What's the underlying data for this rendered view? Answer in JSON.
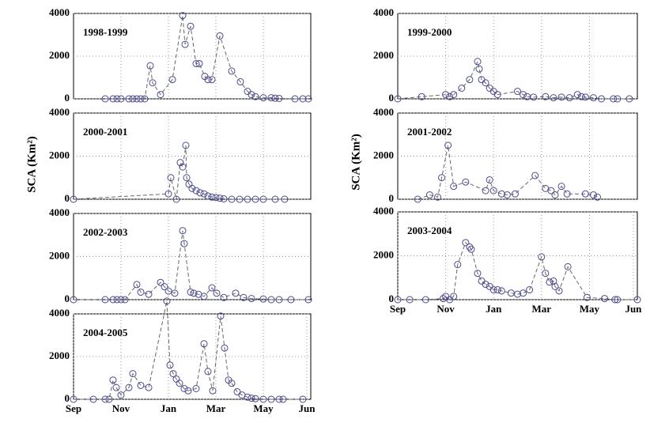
{
  "chart_data": [
    {
      "type": "line",
      "title": "1998-1999",
      "color": "#4a4a90",
      "x": [
        40,
        50,
        55,
        60,
        70,
        75,
        80,
        85,
        90,
        97,
        100,
        110,
        125,
        138,
        141,
        148,
        155,
        159,
        166,
        170,
        175,
        185,
        200,
        211,
        220,
        225,
        230,
        240,
        250,
        255,
        260,
        280,
        290,
        297
      ],
      "values": [
        0,
        0,
        0,
        0,
        0,
        0,
        0,
        0,
        0,
        1550,
        750,
        200,
        900,
        3900,
        2550,
        3400,
        1650,
        1650,
        1050,
        900,
        900,
        2950,
        1300,
        800,
        350,
        200,
        100,
        50,
        50,
        30,
        20,
        0,
        0,
        0
      ],
      "xlim": [
        0,
        300
      ],
      "ylim": [
        0,
        4000
      ],
      "xticks": [
        60,
        120,
        180,
        240
      ],
      "yticks": [
        0,
        2000,
        4000
      ]
    },
    {
      "type": "line",
      "title": "2000-2001",
      "ylabel": "SCA (Km²)",
      "color": "#4a4a90",
      "x": [
        0,
        120,
        123,
        130,
        135,
        138,
        142,
        143,
        146,
        150,
        155,
        160,
        165,
        170,
        175,
        180,
        185,
        190,
        200,
        210,
        220,
        230,
        240,
        255,
        267
      ],
      "values": [
        0,
        250,
        1000,
        0,
        1700,
        1500,
        2500,
        1000,
        700,
        500,
        400,
        300,
        250,
        150,
        100,
        80,
        50,
        20,
        0,
        0,
        0,
        0,
        0,
        0,
        0
      ],
      "xlim": [
        0,
        300
      ],
      "ylim": [
        0,
        4000
      ],
      "xticks": [
        60,
        120,
        180,
        240
      ],
      "yticks": [
        0,
        2000,
        4000
      ]
    },
    {
      "type": "line",
      "title": "2002-2003",
      "color": "#4a4a90",
      "x": [
        0,
        40,
        50,
        55,
        60,
        65,
        80,
        85,
        95,
        110,
        115,
        120,
        128,
        138,
        140,
        148,
        152,
        158,
        165,
        175,
        181,
        190,
        205,
        215,
        225,
        240,
        250,
        260,
        275,
        297
      ],
      "values": [
        0,
        0,
        0,
        0,
        0,
        0,
        700,
        350,
        250,
        800,
        600,
        400,
        300,
        3200,
        2600,
        350,
        300,
        250,
        150,
        550,
        300,
        100,
        300,
        100,
        50,
        30,
        0,
        0,
        0,
        0
      ],
      "xlim": [
        0,
        300
      ],
      "ylim": [
        0,
        4000
      ],
      "xticks": [
        60,
        120,
        180,
        240
      ],
      "yticks": [
        0,
        2000,
        4000
      ]
    },
    {
      "type": "line",
      "title": "2004-2005",
      "color": "#4a4a90",
      "x": [
        0,
        25,
        40,
        45,
        50,
        54,
        60,
        70,
        75,
        85,
        95,
        118,
        122,
        126,
        130,
        134,
        140,
        145,
        155,
        165,
        170,
        176,
        186,
        191,
        196,
        200,
        207,
        213,
        220,
        225,
        230,
        240,
        250,
        260,
        265,
        290
      ],
      "values": [
        0,
        0,
        0,
        0,
        900,
        550,
        200,
        550,
        1200,
        650,
        550,
        4600,
        1600,
        1200,
        950,
        750,
        500,
        400,
        500,
        2600,
        1300,
        400,
        3900,
        2400,
        900,
        750,
        350,
        200,
        100,
        50,
        30,
        0,
        0,
        0,
        0,
        0
      ],
      "xlim": [
        0,
        300
      ],
      "ylim": [
        0,
        4000
      ],
      "xticks": [
        {
          "value": 0,
          "label": "Sep"
        },
        {
          "value": 60,
          "label": "Nov"
        },
        {
          "value": 120,
          "label": "Jan"
        },
        {
          "value": 180,
          "label": "Mar"
        },
        {
          "value": 240,
          "label": "May"
        },
        {
          "value": 295,
          "label": "Jun"
        }
      ],
      "yticks": [
        0,
        2000,
        4000
      ]
    },
    {
      "type": "line",
      "title": "1999-2000",
      "color": "#4a4a90",
      "x": [
        0,
        30,
        60,
        65,
        70,
        80,
        90,
        100,
        102,
        105,
        110,
        115,
        120,
        125,
        150,
        157,
        162,
        170,
        185,
        195,
        205,
        215,
        225,
        230,
        235,
        245,
        255,
        270,
        275,
        290
      ],
      "values": [
        0,
        100,
        200,
        100,
        200,
        500,
        900,
        1750,
        1400,
        900,
        750,
        500,
        350,
        200,
        350,
        200,
        100,
        80,
        100,
        50,
        80,
        50,
        200,
        100,
        80,
        50,
        0,
        0,
        0,
        0
      ],
      "xlim": [
        0,
        300
      ],
      "ylim": [
        0,
        4000
      ],
      "xticks": [
        60,
        120,
        180,
        240
      ],
      "yticks": [
        0,
        2000,
        4000
      ]
    },
    {
      "type": "line",
      "title": "2001-2002",
      "ylabel": "SCA (Km²)",
      "color": "#4a4a90",
      "x": [
        25,
        40,
        50,
        55,
        63,
        70,
        85,
        110,
        115,
        120,
        130,
        137,
        147,
        172,
        185,
        192,
        197,
        205,
        212,
        235,
        245,
        250
      ],
      "values": [
        0,
        200,
        100,
        1000,
        2500,
        600,
        800,
        400,
        900,
        400,
        250,
        200,
        250,
        1100,
        500,
        400,
        200,
        600,
        250,
        250,
        200,
        100
      ],
      "xlim": [
        0,
        300
      ],
      "ylim": [
        0,
        4000
      ],
      "xticks": [
        60,
        120,
        180,
        240
      ],
      "yticks": [
        0,
        2000,
        4000
      ]
    },
    {
      "type": "line",
      "title": "2003-2004",
      "color": "#4a4a90",
      "x": [
        0,
        15,
        35,
        57,
        60,
        65,
        70,
        75,
        85,
        90,
        92,
        100,
        105,
        110,
        115,
        120,
        125,
        130,
        142,
        150,
        157,
        165,
        180,
        185,
        190,
        195,
        197,
        202,
        213,
        237,
        259,
        272,
        275,
        300
      ],
      "values": [
        0,
        0,
        0,
        50,
        150,
        0,
        150,
        1600,
        2600,
        2400,
        2300,
        1200,
        850,
        700,
        600,
        450,
        450,
        400,
        300,
        250,
        300,
        450,
        1950,
        1200,
        800,
        850,
        600,
        400,
        1500,
        100,
        50,
        0,
        0,
        0
      ],
      "xlim": [
        0,
        300
      ],
      "ylim": [
        0,
        4000
      ],
      "xticks": [
        {
          "value": 0,
          "label": "Sep"
        },
        {
          "value": 60,
          "label": "Nov"
        },
        {
          "value": 120,
          "label": "Jan"
        },
        {
          "value": 180,
          "label": "Mar"
        },
        {
          "value": 240,
          "label": "May"
        },
        {
          "value": 295,
          "label": "Jun"
        }
      ],
      "yticks": [
        0,
        2000,
        4000
      ]
    }
  ]
}
